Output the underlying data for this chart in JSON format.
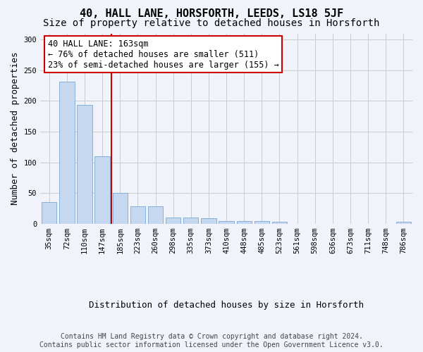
{
  "title": "40, HALL LANE, HORSFORTH, LEEDS, LS18 5JF",
  "subtitle": "Size of property relative to detached houses in Horsforth",
  "xlabel": "Distribution of detached houses by size in Horsforth",
  "ylabel": "Number of detached properties",
  "bar_values": [
    36,
    231,
    194,
    110,
    50,
    29,
    29,
    10,
    10,
    9,
    4,
    4,
    4,
    3,
    0,
    0,
    0,
    0,
    0,
    0,
    3
  ],
  "categories": [
    "35sqm",
    "72sqm",
    "110sqm",
    "147sqm",
    "185sqm",
    "223sqm",
    "260sqm",
    "298sqm",
    "335sqm",
    "373sqm",
    "410sqm",
    "448sqm",
    "485sqm",
    "523sqm",
    "561sqm",
    "598sqm",
    "636sqm",
    "673sqm",
    "711sqm",
    "748sqm",
    "786sqm"
  ],
  "bar_color": "#c5d8f0",
  "bar_edge_color": "#7aa8d4",
  "annotation_text": "40 HALL LANE: 163sqm\n← 76% of detached houses are smaller (511)\n23% of semi-detached houses are larger (155) →",
  "annotation_box_color": "#ffffff",
  "annotation_box_edge": "#cc0000",
  "vline_color": "#cc0000",
  "vline_x": 3.5,
  "ylim": [
    0,
    310
  ],
  "yticks": [
    0,
    50,
    100,
    150,
    200,
    250,
    300
  ],
  "grid_color": "#cccccc",
  "bg_color": "#f0f4fa",
  "footer_line1": "Contains HM Land Registry data © Crown copyright and database right 2024.",
  "footer_line2": "Contains public sector information licensed under the Open Government Licence v3.0.",
  "title_fontsize": 11,
  "subtitle_fontsize": 10,
  "axis_label_fontsize": 9,
  "tick_fontsize": 7.5,
  "annotation_fontsize": 8.5,
  "footer_fontsize": 7
}
